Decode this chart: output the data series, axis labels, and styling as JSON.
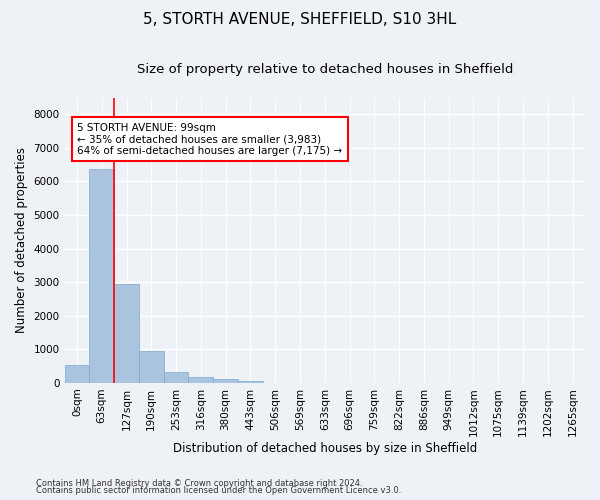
{
  "title": "5, STORTH AVENUE, SHEFFIELD, S10 3HL",
  "subtitle": "Size of property relative to detached houses in Sheffield",
  "xlabel": "Distribution of detached houses by size in Sheffield",
  "ylabel": "Number of detached properties",
  "footer_line1": "Contains HM Land Registry data © Crown copyright and database right 2024.",
  "footer_line2": "Contains public sector information licensed under the Open Government Licence v3.0.",
  "bar_labels": [
    "0sqm",
    "63sqm",
    "127sqm",
    "190sqm",
    "253sqm",
    "316sqm",
    "380sqm",
    "443sqm",
    "506sqm",
    "569sqm",
    "633sqm",
    "696sqm",
    "759sqm",
    "822sqm",
    "886sqm",
    "949sqm",
    "1012sqm",
    "1075sqm",
    "1139sqm",
    "1202sqm",
    "1265sqm"
  ],
  "bar_values": [
    540,
    6380,
    2930,
    960,
    320,
    160,
    100,
    65,
    0,
    0,
    0,
    0,
    0,
    0,
    0,
    0,
    0,
    0,
    0,
    0,
    0
  ],
  "bar_color": "#aac4e0",
  "bar_edge_color": "#7aaacf",
  "ylim": [
    0,
    8500
  ],
  "yticks": [
    0,
    1000,
    2000,
    3000,
    4000,
    5000,
    6000,
    7000,
    8000
  ],
  "annotation_line1": "5 STORTH AVENUE: 99sqm",
  "annotation_line2": "← 35% of detached houses are smaller (3,983)",
  "annotation_line3": "64% of semi-detached houses are larger (7,175) →",
  "vline_x": 1.5,
  "bg_color": "#eef2f7",
  "plot_bg_color": "#eef2f7",
  "grid_color": "#ffffff",
  "title_fontsize": 11,
  "subtitle_fontsize": 9.5,
  "ylabel_fontsize": 8.5,
  "xlabel_fontsize": 8.5,
  "annotation_fontsize": 7.5,
  "tick_fontsize": 7.5
}
